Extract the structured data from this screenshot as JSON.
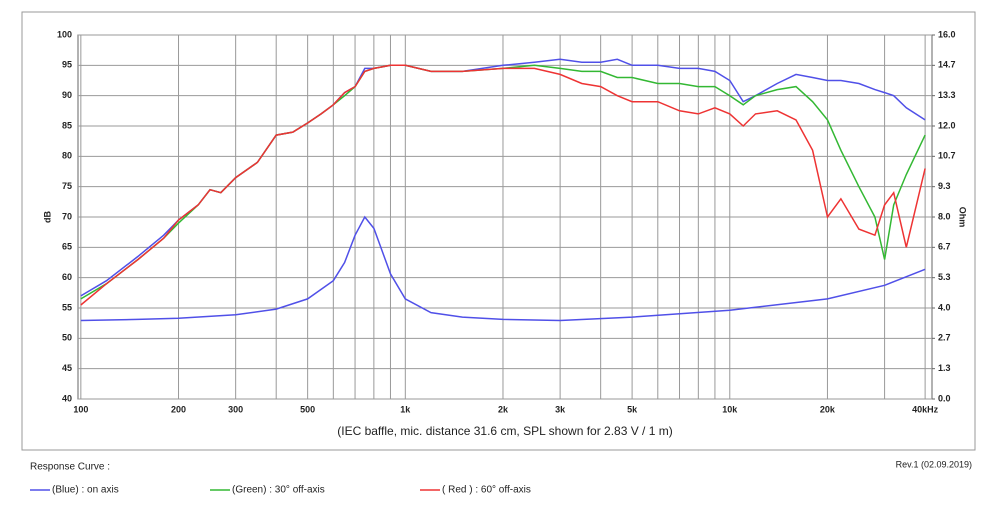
{
  "chart_data": {
    "type": "line",
    "xlabel": "(IEC baffle, mic. distance 31.6 cm, SPL shown for 2.83 V / 1 m)",
    "ylabel": "dB",
    "y2label": "Ohm",
    "legend_title": "Response Curve :",
    "revision": "Rev.1 (02.09.2019)",
    "log_x": true,
    "grid": true,
    "xlim": [
      98,
      42000
    ],
    "ylim": [
      40,
      100
    ],
    "y2lim": [
      0,
      16
    ],
    "xticks": [
      {
        "value": 100,
        "label": "100"
      },
      {
        "value": 200,
        "label": "200"
      },
      {
        "value": 300,
        "label": "300"
      },
      {
        "value": 500,
        "label": "500"
      },
      {
        "value": 1000,
        "label": "1k"
      },
      {
        "value": 2000,
        "label": "2k"
      },
      {
        "value": 3000,
        "label": "3k"
      },
      {
        "value": 5000,
        "label": "5k"
      },
      {
        "value": 10000,
        "label": "10k"
      },
      {
        "value": 20000,
        "label": "20k"
      },
      {
        "value": 40000,
        "label": "40kHz"
      }
    ],
    "xminor": [
      400,
      600,
      700,
      800,
      900,
      4000,
      6000,
      7000,
      8000,
      9000,
      30000
    ],
    "yticks": [
      40,
      45,
      50,
      55,
      60,
      65,
      70,
      75,
      80,
      85,
      90,
      95,
      100
    ],
    "y2ticks": [
      {
        "value": 0,
        "label": "0.0"
      },
      {
        "value": 1.3333,
        "label": "1.3"
      },
      {
        "value": 2.6667,
        "label": "2.7"
      },
      {
        "value": 4,
        "label": "4.0"
      },
      {
        "value": 5.3333,
        "label": "5.3"
      },
      {
        "value": 6.6667,
        "label": "6.7"
      },
      {
        "value": 8,
        "label": "8.0"
      },
      {
        "value": 9.3333,
        "label": "9.3"
      },
      {
        "value": 10.6667,
        "label": "10.7"
      },
      {
        "value": 12,
        "label": "12.0"
      },
      {
        "value": 13.3333,
        "label": "13.3"
      },
      {
        "value": 14.6667,
        "label": "14.7"
      },
      {
        "value": 16,
        "label": "16.0"
      }
    ],
    "x": [
      100,
      120,
      150,
      180,
      200,
      230,
      250,
      270,
      300,
      350,
      400,
      450,
      500,
      550,
      600,
      650,
      700,
      750,
      800,
      900,
      1000,
      1200,
      1500,
      2000,
      2500,
      3000,
      3500,
      4000,
      4500,
      5000,
      6000,
      7000,
      8000,
      9000,
      10000,
      11000,
      12000,
      14000,
      16000,
      18000,
      20000,
      22000,
      25000,
      28000,
      30000,
      32000,
      35000,
      40000
    ],
    "series": [
      {
        "name": "(Blue)  : on axis",
        "color": "#5050e8",
        "values": [
          57,
          59.5,
          63.5,
          67,
          69.5,
          72,
          74.5,
          74,
          76.5,
          79,
          83.5,
          84,
          85.5,
          87,
          88.5,
          90.5,
          91.5,
          94.5,
          94.5,
          95,
          95,
          94,
          94,
          95,
          95.5,
          96,
          95.5,
          95.5,
          96,
          95,
          95,
          94.5,
          94.5,
          94,
          92.5,
          89,
          90,
          92,
          93.5,
          93,
          92.5,
          92.5,
          92,
          91,
          90.5,
          90,
          88,
          86
        ]
      },
      {
        "name": "(Green) : 30° off-axis",
        "color": "#33b833",
        "values": [
          56.5,
          59,
          63,
          66.5,
          69,
          72,
          74.5,
          74,
          76.5,
          79,
          83.5,
          84,
          85.5,
          87,
          88.5,
          90,
          91.5,
          94,
          94.5,
          95,
          95,
          94,
          94,
          94.5,
          95,
          94.5,
          94,
          94,
          93,
          93,
          92,
          92,
          91.5,
          91.5,
          90,
          88.5,
          90,
          91,
          91.5,
          89,
          86,
          81,
          75,
          70,
          63,
          72,
          77,
          83.5
        ]
      },
      {
        "name": "( Red ) : 60° off-axis",
        "color": "#ee3333",
        "values": [
          55.5,
          59,
          63,
          66.5,
          69.5,
          72,
          74.5,
          74,
          76.5,
          79,
          83.5,
          84,
          85.5,
          87,
          88.5,
          90.5,
          91.5,
          94,
          94.5,
          95,
          95,
          94,
          94,
          94.5,
          94.5,
          93.5,
          92,
          91.5,
          90,
          89,
          89,
          87.5,
          87,
          88,
          87,
          85,
          87,
          87.5,
          86,
          81,
          70,
          73,
          68,
          67,
          72,
          74,
          65,
          78
        ]
      },
      {
        "color": "#5050e8",
        "axis": "y2",
        "x": [
          100,
          150,
          200,
          300,
          400,
          500,
          600,
          650,
          700,
          750,
          800,
          900,
          1000,
          1200,
          1500,
          2000,
          3000,
          5000,
          10000,
          20000,
          30000,
          40000
        ],
        "values": [
          3.45,
          3.5,
          3.55,
          3.7,
          3.95,
          4.4,
          5.2,
          6,
          7.2,
          8,
          7.5,
          5.5,
          4.4,
          3.8,
          3.6,
          3.5,
          3.45,
          3.6,
          3.9,
          4.4,
          5,
          5.7
        ]
      }
    ]
  }
}
